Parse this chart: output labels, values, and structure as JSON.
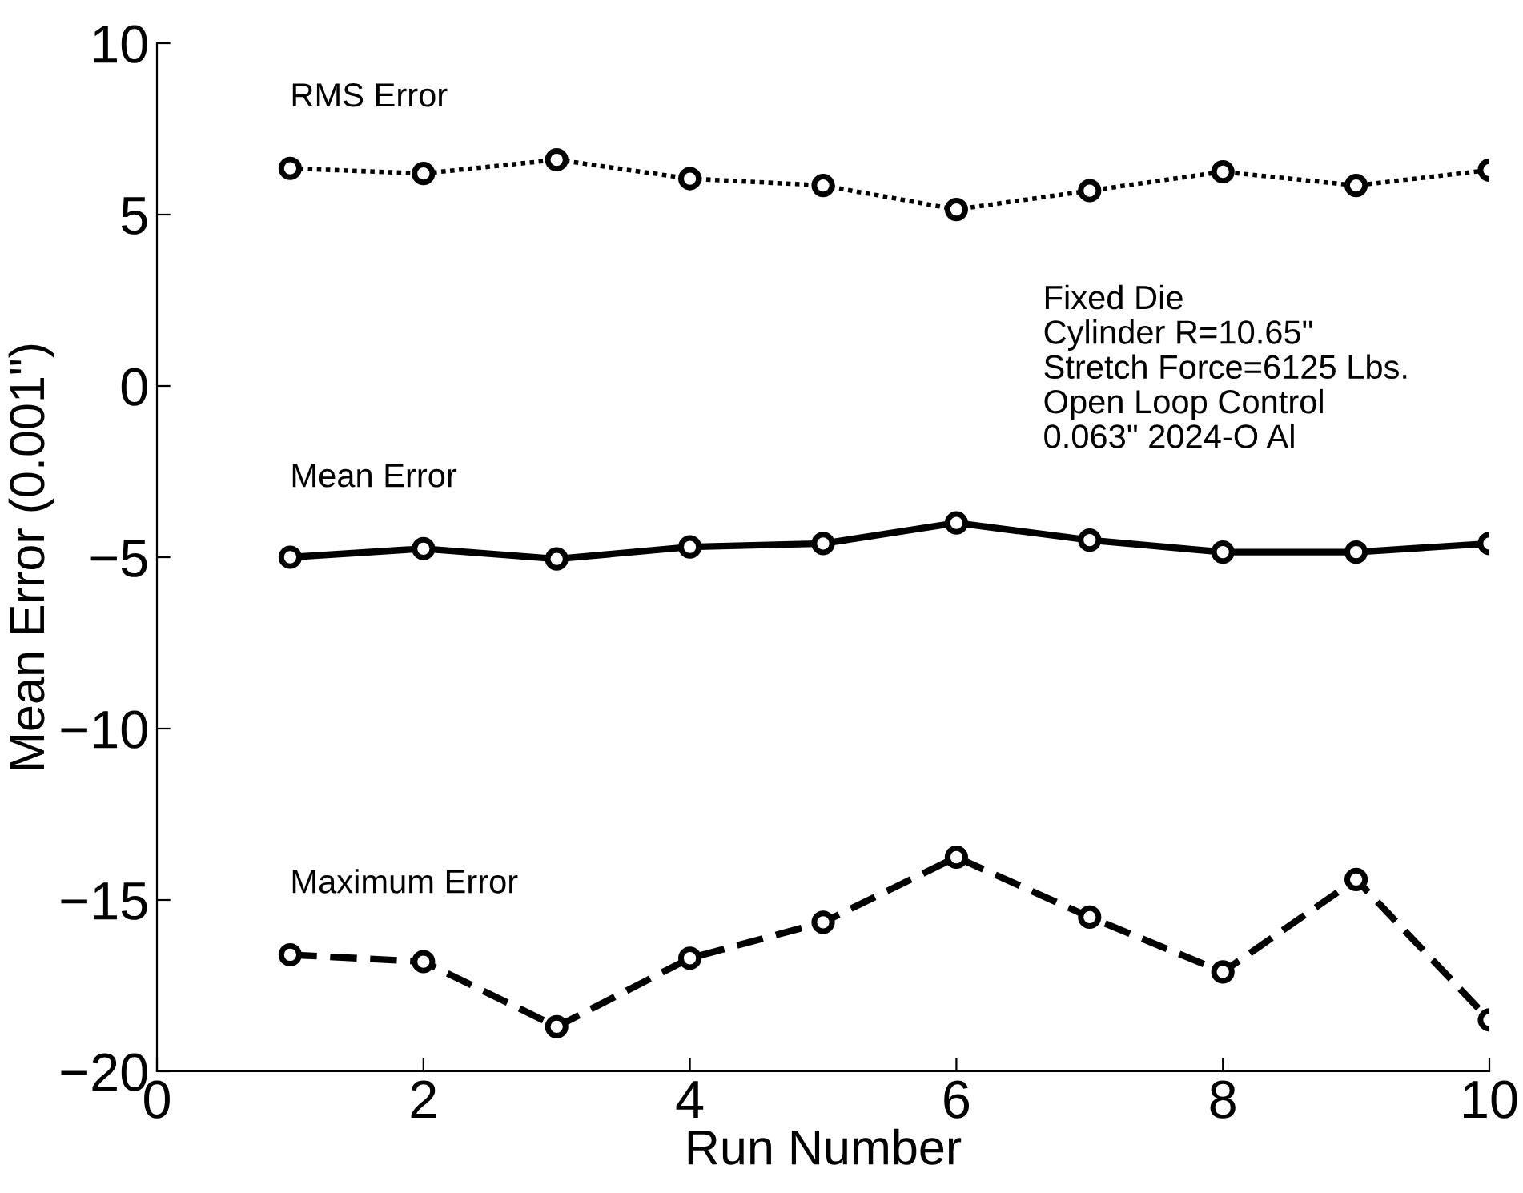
{
  "chart_data": {
    "type": "line",
    "xlabel": "Run Number",
    "ylabel": "Mean Error (0.001\")",
    "x": [
      1,
      2,
      3,
      4,
      5,
      6,
      7,
      8,
      9,
      10
    ],
    "series": [
      {
        "name": "RMS Error",
        "color": "#000000",
        "line_style": "dotted",
        "values": [
          6.35,
          6.2,
          6.6,
          6.05,
          5.85,
          5.15,
          5.7,
          6.25,
          5.85,
          6.3
        ]
      },
      {
        "name": "Mean Error",
        "color": "#000000",
        "line_style": "solid",
        "values": [
          -5.0,
          -4.75,
          -5.05,
          -4.7,
          -4.6,
          -4.0,
          -4.5,
          -4.85,
          -4.85,
          -4.6
        ]
      },
      {
        "name": "Maximum Error",
        "color": "#000000",
        "line_style": "dashed",
        "values": [
          -16.6,
          -16.8,
          -18.7,
          -16.7,
          -15.65,
          -13.75,
          -15.5,
          -17.1,
          -14.4,
          -18.5
        ]
      }
    ],
    "marker": "circle",
    "xlim": [
      0,
      10
    ],
    "xticks": [
      0,
      2,
      4,
      6,
      8,
      10
    ],
    "ylim": [
      -20,
      10
    ],
    "yticks": [
      -20,
      -15,
      -10,
      -5,
      0,
      5,
      10
    ],
    "grid": false,
    "legend": false,
    "annotations": [
      "Fixed Die\nCylinder R=10.65\"\nStretch Force=6125 Lbs.\nOpen Loop Control\n0.063\" 2024-O Al"
    ]
  }
}
